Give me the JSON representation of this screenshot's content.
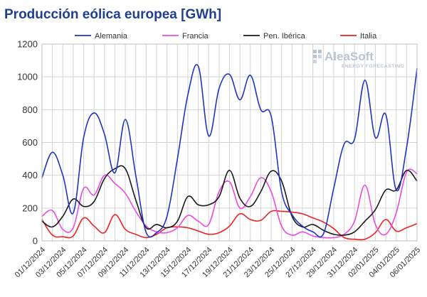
{
  "chart_data": {
    "type": "line",
    "title": "Producción eólica europea [GWh]",
    "xlabel": "",
    "ylabel": "",
    "ylim": [
      0,
      1200
    ],
    "yticks": [
      0,
      200,
      400,
      600,
      800,
      1000,
      1200
    ],
    "grid": true,
    "legend_position": "top",
    "x": [
      "01/12/2024",
      "02/12/2024",
      "03/12/2024",
      "04/12/2024",
      "05/12/2024",
      "06/12/2024",
      "07/12/2024",
      "08/12/2024",
      "09/12/2024",
      "10/12/2024",
      "11/12/2024",
      "12/12/2024",
      "13/12/2024",
      "14/12/2024",
      "15/12/2024",
      "16/12/2024",
      "17/12/2024",
      "18/12/2024",
      "19/12/2024",
      "20/12/2024",
      "21/12/2024",
      "22/12/2024",
      "23/12/2024",
      "24/12/2024",
      "25/12/2024",
      "26/12/2024",
      "27/12/2024",
      "28/12/2024",
      "29/12/2024",
      "30/12/2024",
      "31/12/2024",
      "01/01/2025",
      "02/01/2025",
      "03/01/2025",
      "04/01/2025",
      "05/01/2025",
      "06/01/2025"
    ],
    "xtick_labels": [
      "01/12/2024",
      "03/12/2024",
      "05/12/2024",
      "07/12/2024",
      "09/12/2024",
      "11/12/2024",
      "13/12/2024",
      "15/12/2024",
      "17/12/2024",
      "19/12/2024",
      "21/12/2024",
      "23/12/2024",
      "25/12/2024",
      "27/12/2024",
      "29/12/2024",
      "31/12/2024",
      "02/01/2025",
      "04/01/2025",
      "06/01/2025"
    ],
    "series": [
      {
        "name": "Alemania",
        "color": "#1f35c2",
        "values": [
          385,
          540,
          400,
          170,
          630,
          780,
          650,
          415,
          740,
          400,
          50,
          50,
          150,
          500,
          890,
          1065,
          640,
          930,
          1015,
          860,
          1010,
          800,
          760,
          300,
          160,
          90,
          55,
          40,
          320,
          590,
          620,
          980,
          630,
          770,
          310,
          570,
          1050
        ]
      },
      {
        "name": "Francia",
        "color": "#e94de0",
        "values": [
          150,
          185,
          70,
          80,
          320,
          280,
          400,
          350,
          290,
          180,
          90,
          55,
          50,
          80,
          155,
          120,
          100,
          300,
          360,
          200,
          270,
          385,
          300,
          90,
          35,
          55,
          30,
          20,
          20,
          40,
          120,
          340,
          100,
          40,
          170,
          420,
          410
        ]
      },
      {
        "name": "Pen. Ibérica",
        "color": "#1a1a1a",
        "values": [
          120,
          85,
          150,
          255,
          210,
          240,
          380,
          440,
          440,
          250,
          80,
          100,
          80,
          120,
          270,
          220,
          220,
          270,
          430,
          260,
          210,
          300,
          425,
          365,
          150,
          85,
          100,
          65,
          40,
          35,
          55,
          120,
          190,
          310,
          310,
          430,
          365
        ]
      },
      {
        "name": "Italia",
        "color": "#ee2222",
        "values": [
          130,
          35,
          25,
          30,
          140,
          90,
          50,
          160,
          70,
          40,
          20,
          40,
          80,
          85,
          80,
          60,
          40,
          50,
          90,
          165,
          130,
          125,
          180,
          180,
          175,
          165,
          140,
          115,
          75,
          20,
          10,
          10,
          50,
          130,
          60,
          80,
          105
        ]
      }
    ]
  },
  "watermark": {
    "brand": "AleaSoft",
    "tagline": "ENERGY FORECASTING"
  }
}
